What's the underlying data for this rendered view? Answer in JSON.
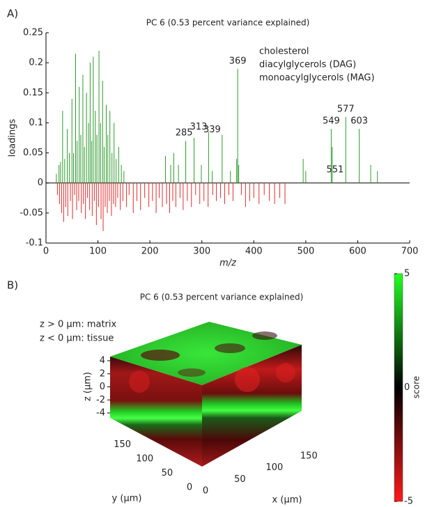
{
  "chart_data": [
    {
      "type": "stem",
      "panel_label": "A)",
      "title": "PC 6 (0.53 percent variance explained)",
      "xlabel": "m/z",
      "ylabel": "loadings",
      "xlim": [
        0,
        700
      ],
      "xticks": [
        0,
        100,
        200,
        300,
        400,
        500,
        600,
        700
      ],
      "ylim": [
        -0.1,
        0.25
      ],
      "yticks": [
        -0.1,
        -0.05,
        0,
        0.05,
        0.1,
        0.15,
        0.2,
        0.25
      ],
      "positive_color": "#2e9a2e",
      "negative_color": "#e32b2b",
      "legend": [
        "cholesterol",
        "diacylglycerols (DAG)",
        "monoacylglycerols (MAG)"
      ],
      "legend_color": "#2faa4a",
      "labeled_peaks": [
        285,
        313,
        339,
        369,
        549,
        551,
        577,
        603
      ],
      "x": [
        20,
        25,
        28,
        32,
        36,
        41,
        45,
        50,
        53,
        57,
        60,
        64,
        67,
        71,
        74,
        78,
        82,
        85,
        88,
        91,
        95,
        98,
        102,
        105,
        109,
        112,
        116,
        119,
        123,
        127,
        131,
        135,
        140,
        145,
        150,
        230,
        240,
        246,
        255,
        269,
        285,
        299,
        313,
        320,
        339,
        355,
        367,
        369,
        371,
        495,
        500,
        549,
        551,
        577,
        603,
        625,
        638,
        22,
        26,
        30,
        34,
        38,
        42,
        47,
        51,
        55,
        59,
        63,
        68,
        72,
        76,
        80,
        84,
        89,
        93,
        97,
        101,
        106,
        110,
        114,
        118,
        122,
        126,
        130,
        134,
        138,
        143,
        148,
        155,
        160,
        168,
        175,
        182,
        190,
        198,
        205,
        212,
        218,
        224,
        232,
        238,
        244,
        250,
        258,
        264,
        272,
        280,
        288,
        296,
        304,
        312,
        321,
        328,
        336,
        344,
        352,
        360,
        376,
        384,
        392,
        400,
        410,
        420,
        430,
        440,
        450,
        460
      ],
      "values": [
        0.015,
        0.03,
        0.035,
        0.12,
        0.04,
        0.09,
        0.05,
        0.14,
        0.05,
        0.215,
        0.07,
        0.16,
        0.08,
        0.18,
        0.06,
        0.15,
        0.1,
        0.2,
        0.07,
        0.21,
        0.12,
        0.08,
        0.22,
        0.1,
        0.17,
        0.06,
        0.13,
        0.08,
        0.12,
        0.05,
        0.1,
        0.04,
        0.06,
        0.03,
        0.02,
        0.045,
        0.03,
        0.05,
        0.03,
        0.07,
        0.075,
        0.03,
        0.085,
        0.02,
        0.08,
        0.02,
        0.04,
        0.19,
        0.03,
        0.04,
        0.02,
        0.09,
        0.06,
        0.11,
        0.09,
        0.03,
        0.02,
        -0.02,
        -0.035,
        -0.05,
        -0.065,
        -0.04,
        -0.055,
        -0.03,
        -0.06,
        -0.02,
        -0.045,
        -0.03,
        -0.05,
        -0.035,
        -0.06,
        -0.025,
        -0.045,
        -0.055,
        -0.03,
        -0.07,
        -0.04,
        -0.06,
        -0.08,
        -0.04,
        -0.05,
        -0.03,
        -0.055,
        -0.035,
        -0.04,
        -0.025,
        -0.045,
        -0.03,
        -0.04,
        -0.02,
        -0.05,
        -0.03,
        -0.045,
        -0.025,
        -0.04,
        -0.03,
        -0.05,
        -0.025,
        -0.04,
        -0.035,
        -0.05,
        -0.03,
        -0.04,
        -0.025,
        -0.045,
        -0.03,
        -0.04,
        -0.02,
        -0.035,
        -0.03,
        -0.04,
        -0.02,
        -0.03,
        -0.025,
        -0.035,
        -0.02,
        -0.03,
        -0.02,
        -0.04,
        -0.03,
        -0.025,
        -0.035,
        -0.02,
        -0.03,
        -0.035,
        -0.025,
        -0.035
      ]
    },
    {
      "type": "volume",
      "panel_label": "B)",
      "title": "PC 6 (0.53 percent variance explained)",
      "annotations": [
        "z > 0 µm: matrix",
        "z < 0 µm: tissue"
      ],
      "zlabel": "z (µm)",
      "ylabel": "y (µm)",
      "xlabel": "x (µm)",
      "zlim": [
        -4,
        4
      ],
      "zticks": [
        4,
        2,
        0,
        -2,
        -4
      ],
      "ylim": [
        0,
        190
      ],
      "yticks": [
        150,
        100,
        50,
        0
      ],
      "xlim": [
        0,
        180
      ],
      "xticks": [
        0,
        50,
        100,
        150
      ],
      "clim": [
        -5,
        5
      ],
      "cticks": [
        5,
        0,
        -5
      ],
      "clabel": "score"
    }
  ]
}
